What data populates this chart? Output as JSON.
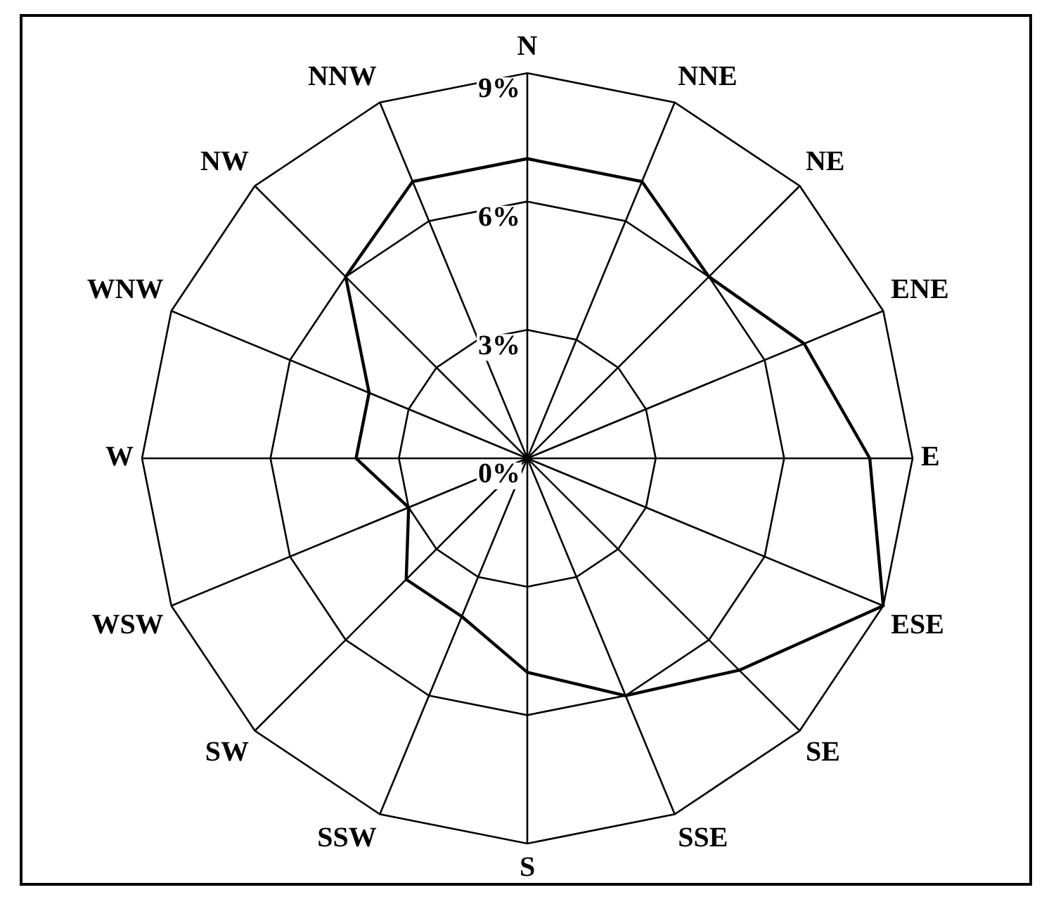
{
  "chart_data": {
    "type": "radar",
    "categories": [
      "N",
      "NNE",
      "NE",
      "ENE",
      "E",
      "ESE",
      "SE",
      "SSE",
      "S",
      "SSW",
      "SW",
      "WSW",
      "W",
      "WNW",
      "NW",
      "NNW"
    ],
    "series": [
      {
        "color": "#000000",
        "values": [
          7.0,
          7.0,
          6.0,
          7.0,
          8.0,
          9.0,
          7.0,
          6.0,
          5.0,
          4.0,
          4.0,
          3.0,
          4.0,
          4.0,
          6.0,
          7.0
        ]
      }
    ],
    "ylim": [
      0,
      9
    ],
    "yticks": [
      {
        "value": 0,
        "label": "0%"
      },
      {
        "value": 3,
        "label": "3%"
      },
      {
        "value": 6,
        "label": "6%"
      },
      {
        "value": 9,
        "label": "9%"
      }
    ],
    "grid": true,
    "marker": "none"
  }
}
